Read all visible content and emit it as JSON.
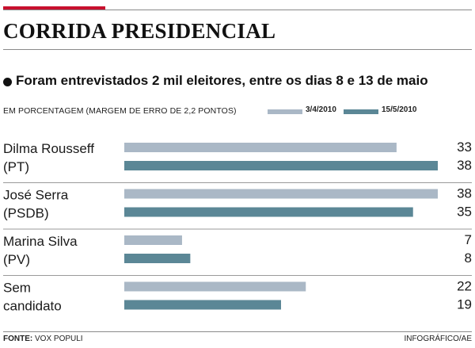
{
  "title": "CORRIDA PRESIDENCIAL",
  "subtitle": "Foram entrevistados 2 mil eleitores, entre os dias 8 e 13 de maio",
  "unit_note": "EM PORCENTAGEM (MARGEM DE ERRO DE 2,2 PONTOS)",
  "footer": {
    "source_label": "FONTE:",
    "source_value": " VOX POPULI",
    "credit": "INFOGRÁFICO/AE"
  },
  "colors": {
    "accent_red": "#c8102e",
    "series_1": "#aab8c6",
    "series_2": "#5b8796"
  },
  "chart_data": {
    "type": "bar",
    "orientation": "horizontal",
    "categories": [
      [
        "Dilma Rousseff",
        "(PT)"
      ],
      [
        "José Serra",
        "(PSDB)"
      ],
      [
        "Marina Silva",
        "(PV)"
      ],
      [
        "Sem",
        "candidato"
      ]
    ],
    "series": [
      {
        "name": "3/4/2010",
        "values": [
          33,
          38,
          7,
          22
        ]
      },
      {
        "name": "15/5/2010",
        "values": [
          38,
          35,
          8,
          19
        ]
      }
    ],
    "xlim": [
      0,
      38
    ],
    "grid": false,
    "legend_position": "top-right",
    "data_labels": true
  }
}
